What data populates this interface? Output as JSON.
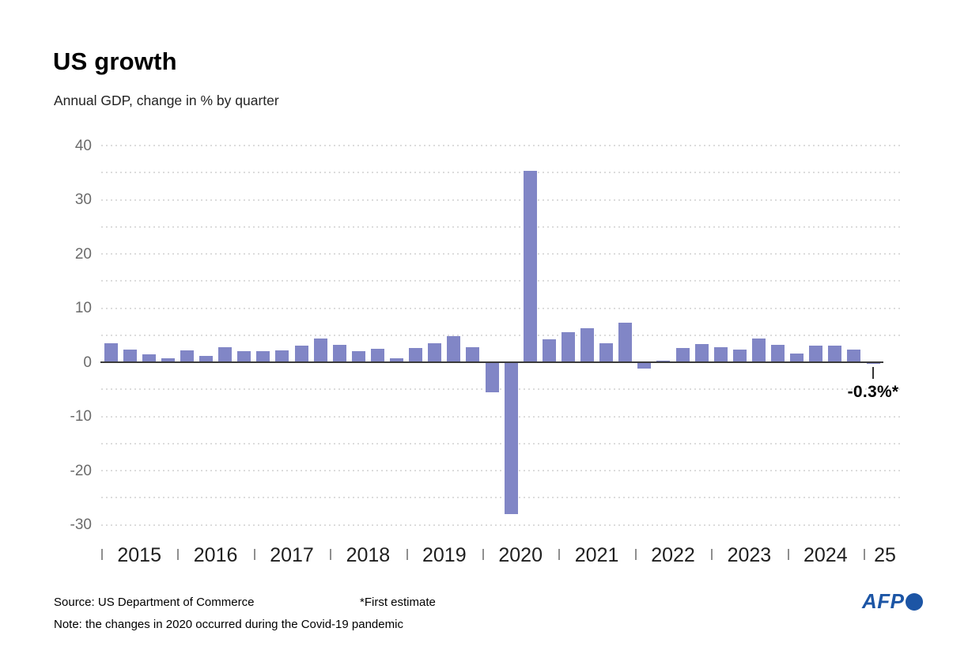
{
  "header": {
    "title": "US growth",
    "subtitle": "Annual GDP, change in % by quarter"
  },
  "chart_data": {
    "type": "bar",
    "title": "US growth",
    "subtitle": "Annual GDP, change in % by quarter",
    "unit": "%",
    "bar_color": "#8186c6",
    "grid_color": "#dcdcdc",
    "axis_color": "#3b3b3b",
    "ylim": [
      -30,
      40
    ],
    "grid_step": 5,
    "label_step": 10,
    "yticks_labeled": [
      40,
      30,
      20,
      10,
      0,
      -10,
      -20,
      -30
    ],
    "year_labels": [
      "2015",
      "2016",
      "2017",
      "2018",
      "2019",
      "2020",
      "2021",
      "2022",
      "2023",
      "2024",
      "25"
    ],
    "points": [
      {
        "q": "2015-Q1",
        "v": 3.5
      },
      {
        "q": "2015-Q2",
        "v": 2.4
      },
      {
        "q": "2015-Q3",
        "v": 1.5
      },
      {
        "q": "2015-Q4",
        "v": 0.7
      },
      {
        "q": "2016-Q1",
        "v": 2.2
      },
      {
        "q": "2016-Q2",
        "v": 1.2
      },
      {
        "q": "2016-Q3",
        "v": 2.8
      },
      {
        "q": "2016-Q4",
        "v": 2.1
      },
      {
        "q": "2017-Q1",
        "v": 2.0
      },
      {
        "q": "2017-Q2",
        "v": 2.2
      },
      {
        "q": "2017-Q3",
        "v": 3.1
      },
      {
        "q": "2017-Q4",
        "v": 4.4
      },
      {
        "q": "2018-Q1",
        "v": 3.2
      },
      {
        "q": "2018-Q2",
        "v": 2.1
      },
      {
        "q": "2018-Q3",
        "v": 2.5
      },
      {
        "q": "2018-Q4",
        "v": 0.7
      },
      {
        "q": "2019-Q1",
        "v": 2.6
      },
      {
        "q": "2019-Q2",
        "v": 3.5
      },
      {
        "q": "2019-Q3",
        "v": 4.8
      },
      {
        "q": "2019-Q4",
        "v": 2.8
      },
      {
        "q": "2020-Q1",
        "v": -5.5
      },
      {
        "q": "2020-Q2",
        "v": -28.1
      },
      {
        "q": "2020-Q3",
        "v": 35.3
      },
      {
        "q": "2020-Q4",
        "v": 4.3
      },
      {
        "q": "2021-Q1",
        "v": 5.6
      },
      {
        "q": "2021-Q2",
        "v": 6.3
      },
      {
        "q": "2021-Q3",
        "v": 3.5
      },
      {
        "q": "2021-Q4",
        "v": 7.3
      },
      {
        "q": "2022-Q1",
        "v": -1.2
      },
      {
        "q": "2022-Q2",
        "v": 0.3
      },
      {
        "q": "2022-Q3",
        "v": 2.7
      },
      {
        "q": "2022-Q4",
        "v": 3.4
      },
      {
        "q": "2023-Q1",
        "v": 2.8
      },
      {
        "q": "2023-Q2",
        "v": 2.4
      },
      {
        "q": "2023-Q3",
        "v": 4.4
      },
      {
        "q": "2023-Q4",
        "v": 3.2
      },
      {
        "q": "2024-Q1",
        "v": 1.6
      },
      {
        "q": "2024-Q2",
        "v": 3.0
      },
      {
        "q": "2024-Q3",
        "v": 3.1
      },
      {
        "q": "2024-Q4",
        "v": 2.4
      },
      {
        "q": "2025-Q1",
        "v": -0.3
      }
    ],
    "annotation": {
      "label": "-0.3%*",
      "quarter": "2025-Q1"
    }
  },
  "footer": {
    "source": "Source: US Department of Commerce",
    "estimate_note": "*First estimate",
    "note": "Note: the changes in 2020 occurred during the Covid-19 pandemic"
  },
  "logo": {
    "text": "AFP",
    "color": "#1c55a5"
  }
}
